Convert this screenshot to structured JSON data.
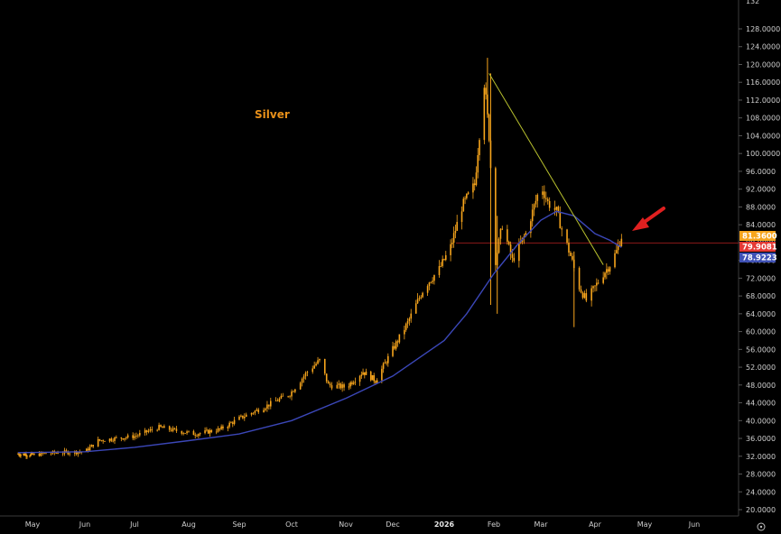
{
  "chart_data": {
    "type": "candlestick",
    "title": "Silver",
    "y_ticks": [
      "20.0000",
      "24.0000",
      "28.0000",
      "32.0000",
      "36.0000",
      "40.0000",
      "44.0000",
      "48.0000",
      "52.0000",
      "56.0000",
      "60.0000",
      "64.0000",
      "68.0000",
      "72.0000",
      "76.0000",
      "80.0000",
      "84.0000",
      "88.0000",
      "92.0000",
      "96.0000",
      "100.0000",
      "104.0000",
      "108.0000",
      "112.0000",
      "116.0000",
      "120.0000",
      "124.0000",
      "128.0000"
    ],
    "y_top_partial": "132",
    "x_ticks": [
      "May",
      "Jun",
      "Jul",
      "Aug",
      "Sep",
      "Oct",
      "Nov",
      "Dec",
      "2026",
      "Feb",
      "Mar",
      "Apr",
      "May",
      "Jun"
    ],
    "ylim": [
      19,
      133
    ],
    "series": [
      {
        "kind": "price",
        "x": [
          "2025-04-15",
          "2025-05-01",
          "2025-05-15",
          "2025-06-01",
          "2025-06-09",
          "2025-06-20",
          "2025-07-01",
          "2025-07-15",
          "2025-07-28",
          "2025-08-05",
          "2025-08-20",
          "2025-09-01",
          "2025-09-15",
          "2025-09-30",
          "2025-10-10",
          "2025-10-17",
          "2025-10-22",
          "2025-11-01",
          "2025-11-12",
          "2025-11-20",
          "2025-12-01",
          "2025-12-10",
          "2025-12-20",
          "2025-12-29",
          "2026-01-05",
          "2026-01-12",
          "2026-01-20",
          "2026-01-26",
          "2026-01-29",
          "2026-02-02",
          "2026-02-06",
          "2026-02-12",
          "2026-02-20",
          "2026-03-01",
          "2026-03-05",
          "2026-03-10",
          "2026-03-13",
          "2026-03-18",
          "2026-03-23",
          "2026-03-27",
          "2026-04-01",
          "2026-04-06",
          "2026-04-10",
          "2026-04-14",
          "2026-04-17"
        ],
        "close": [
          32.5,
          32.3,
          32.8,
          33.0,
          35.5,
          36.0,
          36.5,
          38.5,
          37.5,
          37.0,
          38.0,
          40.5,
          43.0,
          46.0,
          51.0,
          53.5,
          48.0,
          47.5,
          51.0,
          49.0,
          56.0,
          62.0,
          70.0,
          74.0,
          79.0,
          88.0,
          93.0,
          116.0,
          104.0,
          76.0,
          84.0,
          76.0,
          82.0,
          93.0,
          89.0,
          87.0,
          83.0,
          77.0,
          70.0,
          67.0,
          70.0,
          73.0,
          75.0,
          78.0,
          81.4
        ]
      },
      {
        "kind": "moving-average",
        "x": [
          "2025-04-15",
          "2025-06-01",
          "2025-07-01",
          "2025-08-01",
          "2025-09-01",
          "2025-10-01",
          "2025-11-01",
          "2025-12-01",
          "2026-01-01",
          "2026-01-15",
          "2026-02-01",
          "2026-02-15",
          "2026-03-01",
          "2026-03-10",
          "2026-03-20",
          "2026-04-01",
          "2026-04-10",
          "2026-04-17"
        ],
        "values": [
          32.8,
          33.0,
          34.0,
          35.5,
          37.0,
          40.0,
          45.0,
          50.0,
          58.0,
          64.0,
          73.0,
          79.5,
          85.0,
          87.0,
          86.0,
          82.0,
          80.5,
          78.9
        ]
      },
      {
        "kind": "trendline",
        "x": [
          "2026-01-29",
          "2026-04-06"
        ],
        "values": [
          118.0,
          75.0
        ]
      }
    ],
    "horizontal_line": 79.9081,
    "price_labels": [
      {
        "text": "81.3600",
        "color": "#f7a51c"
      },
      {
        "text": "79.9081",
        "color": "#e53935"
      },
      {
        "text": "78.9223",
        "color": "#3f51b5"
      }
    ],
    "annotation": "red arrow pointing at latest price",
    "colors": {
      "candle": "#f7a51c",
      "ma": "#3b47b8",
      "trend": "#b7bf2e",
      "hline": "#8b1a1a",
      "arrow": "#e02020",
      "title": "#e8901a"
    }
  }
}
